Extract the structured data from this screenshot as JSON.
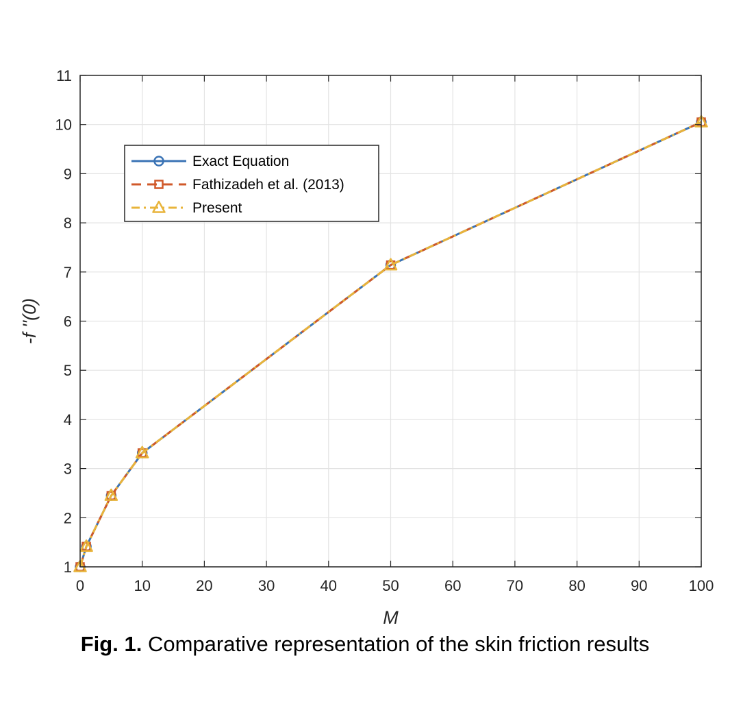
{
  "chart_data": {
    "type": "line",
    "title": "",
    "xlabel": "M",
    "ylabel": "-f ''(0)",
    "xlim": [
      0,
      100
    ],
    "ylim": [
      1,
      11
    ],
    "xticks": [
      0,
      10,
      20,
      30,
      40,
      50,
      60,
      70,
      80,
      90,
      100
    ],
    "yticks": [
      1,
      2,
      3,
      4,
      5,
      6,
      7,
      8,
      9,
      10,
      11
    ],
    "grid": true,
    "legend_position": "upper-left",
    "x": [
      0,
      1,
      5,
      10,
      50,
      100
    ],
    "series": [
      {
        "name": "Exact Equation",
        "values": [
          1.0,
          1.414,
          2.449,
          3.317,
          7.141,
          10.05
        ],
        "color": "#3a73b5",
        "marker": "circle",
        "line": "solid"
      },
      {
        "name": "Fathizadeh et al. (2013)",
        "values": [
          1.0,
          1.414,
          2.449,
          3.317,
          7.141,
          10.05
        ],
        "color": "#d0592a",
        "marker": "square",
        "line": "dashed"
      },
      {
        "name": "Present",
        "values": [
          1.0,
          1.414,
          2.449,
          3.317,
          7.141,
          10.05
        ],
        "color": "#e8b43b",
        "marker": "triangle",
        "line": "dashdot"
      }
    ]
  },
  "caption": {
    "label": "Fig. 1.",
    "text": " Comparative representation of the skin friction results"
  }
}
